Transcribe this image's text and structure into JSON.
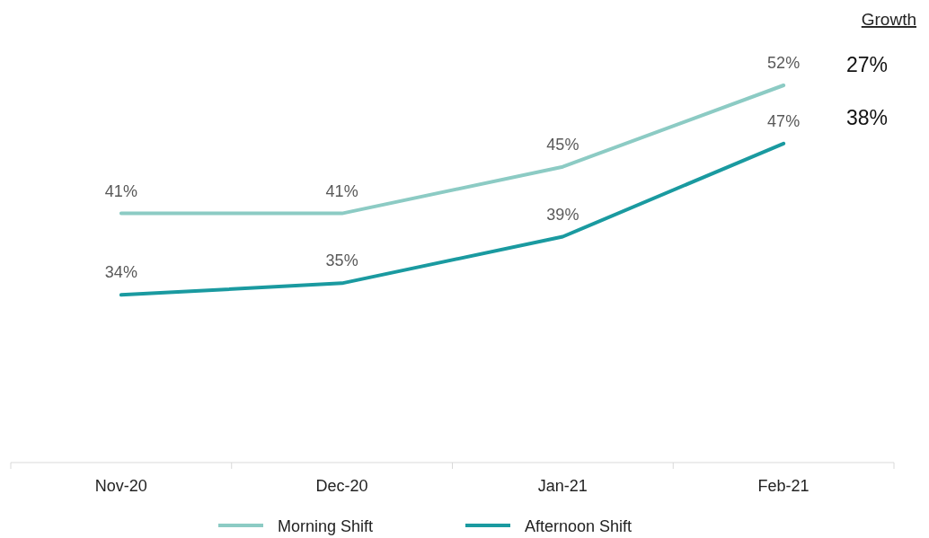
{
  "chart_data": {
    "type": "line",
    "categories": [
      "Nov-20",
      "Dec-20",
      "Jan-21",
      "Feb-21"
    ],
    "series": [
      {
        "name": "Morning Shift",
        "color": "#8ccbc4",
        "values": [
          41,
          41,
          45,
          52
        ],
        "value_labels": [
          "41%",
          "41%",
          "45%",
          "52%"
        ]
      },
      {
        "name": "Afternoon Shift",
        "color": "#1a9aa0",
        "values": [
          34,
          35,
          39,
          47
        ],
        "value_labels": [
          "34%",
          "35%",
          "39%",
          "47%"
        ]
      }
    ],
    "legend": "bottom",
    "marker": "none",
    "line_style": "solid",
    "annotations": [
      "Growth",
      "27%",
      "38%"
    ]
  }
}
